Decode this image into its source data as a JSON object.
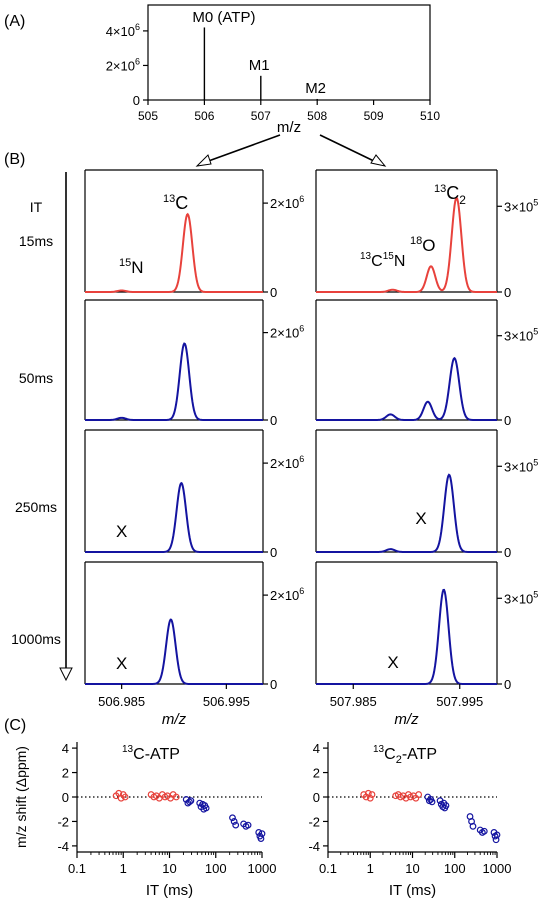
{
  "panel_labels": {
    "a": "(A)",
    "b": "(B)",
    "c": "(C)"
  },
  "it_header": "IT",
  "colors": {
    "red": "#e8423c",
    "blue": "#1414a0",
    "axis": "#000000",
    "arrow_fill": "#ffffff"
  },
  "superscripts": {
    "c13": "13",
    "n15": "15",
    "o18": "18",
    "two_sub": "2"
  },
  "labels": {
    "x_mark": "X",
    "n": "N",
    "c": "C",
    "o": "O"
  },
  "chart_data": [
    {
      "id": "A",
      "type": "bar",
      "xlabel": "m/z",
      "xlim": [
        505,
        510
      ],
      "xticks": [
        505,
        506,
        507,
        508,
        509,
        510
      ],
      "ylim": [
        0,
        5500000
      ],
      "yticks": [
        {
          "v": 0,
          "label": "0"
        },
        {
          "v": 2000000,
          "label": "2×10"
        },
        {
          "v": 4000000,
          "label": "4×10"
        }
      ],
      "ytick_exp": "6",
      "sticks": [
        {
          "x": 506.0,
          "y": 4200000,
          "label": "M0 (ATP)"
        },
        {
          "x": 507.0,
          "y": 1400000,
          "label": "M1"
        },
        {
          "x": 508.0,
          "y": 60000,
          "label": "M2"
        }
      ]
    },
    {
      "id": "B-left",
      "type": "line",
      "xlabel": "m/z",
      "xlim": [
        506.9815,
        506.9985
      ],
      "xticks": [
        {
          "v": 506.985,
          "label": "506.985"
        },
        {
          "v": 506.995,
          "label": "506.995"
        }
      ],
      "ylim": [
        0,
        2700000
      ],
      "ytick_label": "2×10",
      "ytick_exp": "6",
      "yticks": [
        0,
        2000000
      ],
      "peak_labels": {
        "c13": "13C",
        "n15": "15N"
      },
      "series": [
        {
          "name": "15ms",
          "color": "red",
          "n15": {
            "center": 506.985,
            "amp": 35000,
            "sigma": 0.0004
          },
          "peaks": [
            {
              "center": 506.9913,
              "amp": 1750000,
              "sigma": 0.00045
            }
          ]
        },
        {
          "name": "50ms",
          "color": "blue",
          "n15": {
            "center": 506.985,
            "amp": 50000,
            "sigma": 0.0004
          },
          "peaks": [
            {
              "center": 506.991,
              "amp": 1750000,
              "sigma": 0.00045
            }
          ]
        },
        {
          "name": "250ms",
          "color": "blue",
          "peaks": [
            {
              "center": 506.9907,
              "amp": 1550000,
              "sigma": 0.00045
            }
          ]
        },
        {
          "name": "1000ms",
          "color": "blue",
          "peaks": [
            {
              "center": 506.9897,
              "amp": 1450000,
              "sigma": 0.00045
            }
          ]
        }
      ]
    },
    {
      "id": "B-right",
      "type": "line",
      "xlabel": "m/z",
      "xlim": [
        507.9815,
        507.9985
      ],
      "xticks": [
        {
          "v": 507.985,
          "label": "507.985"
        },
        {
          "v": 507.995,
          "label": "507.995"
        }
      ],
      "ylim": [
        0,
        420000
      ],
      "ytick_label": "3×10",
      "ytick_exp": "5",
      "yticks": [
        0,
        300000
      ],
      "peak_labels": {
        "c13_2": "13C2",
        "o18": "18O",
        "c13n15": "13C15N"
      },
      "series": [
        {
          "name": "15ms",
          "color": "red",
          "peaks": [
            {
              "center": 507.9887,
              "amp": 8000,
              "sigma": 0.0004
            },
            {
              "center": 507.9923,
              "amp": 90000,
              "sigma": 0.0004
            },
            {
              "center": 507.9947,
              "amp": 330000,
              "sigma": 0.00045
            }
          ]
        },
        {
          "name": "50ms",
          "color": "blue",
          "peaks": [
            {
              "center": 507.9885,
              "amp": 20000,
              "sigma": 0.0004
            },
            {
              "center": 507.992,
              "amp": 65000,
              "sigma": 0.0004
            },
            {
              "center": 507.9945,
              "amp": 220000,
              "sigma": 0.00045
            }
          ]
        },
        {
          "name": "250ms",
          "color": "blue",
          "peaks": [
            {
              "center": 507.9885,
              "amp": 10000,
              "sigma": 0.0004
            },
            {
              "center": 507.994,
              "amp": 270000,
              "sigma": 0.00045
            }
          ]
        },
        {
          "name": "1000ms",
          "color": "blue",
          "peaks": [
            {
              "center": 507.9935,
              "amp": 330000,
              "sigma": 0.00045
            }
          ]
        }
      ]
    },
    {
      "id": "C-left",
      "type": "scatter",
      "title": "13C-ATP",
      "xlabel": "IT (ms)",
      "ylabel": "m/z shift (Δppm)",
      "xscale": "log",
      "xlim": [
        0.1,
        1000
      ],
      "xticks": [
        {
          "v": 0.1,
          "label": "0.1"
        },
        {
          "v": 1,
          "label": "1"
        },
        {
          "v": 10,
          "label": "10"
        },
        {
          "v": 100,
          "label": "100"
        },
        {
          "v": 1000,
          "label": "1000"
        }
      ],
      "ylim": [
        -4.5,
        4.5
      ],
      "yticks": [
        4,
        2,
        0,
        -2,
        -4
      ],
      "zero_line": "dotted",
      "points": [
        {
          "x": 0.7,
          "y": 0.1,
          "c": "red"
        },
        {
          "x": 0.8,
          "y": 0.3,
          "c": "red"
        },
        {
          "x": 0.9,
          "y": -0.1,
          "c": "red"
        },
        {
          "x": 1.0,
          "y": 0.2,
          "c": "red"
        },
        {
          "x": 1.1,
          "y": 0.0,
          "c": "red"
        },
        {
          "x": 4,
          "y": 0.2,
          "c": "red"
        },
        {
          "x": 4.6,
          "y": 0.0,
          "c": "red"
        },
        {
          "x": 5.2,
          "y": 0.1,
          "c": "red"
        },
        {
          "x": 6,
          "y": -0.1,
          "c": "red"
        },
        {
          "x": 7,
          "y": 0.2,
          "c": "red"
        },
        {
          "x": 8,
          "y": 0.0,
          "c": "red"
        },
        {
          "x": 9,
          "y": 0.1,
          "c": "red"
        },
        {
          "x": 10.5,
          "y": -0.1,
          "c": "red"
        },
        {
          "x": 12,
          "y": 0.2,
          "c": "red"
        },
        {
          "x": 14,
          "y": 0.0,
          "c": "red"
        },
        {
          "x": 23,
          "y": -0.2,
          "c": "blue"
        },
        {
          "x": 25,
          "y": -0.5,
          "c": "blue"
        },
        {
          "x": 27,
          "y": -0.4,
          "c": "blue"
        },
        {
          "x": 29,
          "y": -0.3,
          "c": "blue"
        },
        {
          "x": 45,
          "y": -0.5,
          "c": "blue"
        },
        {
          "x": 48,
          "y": -0.8,
          "c": "blue"
        },
        {
          "x": 52,
          "y": -0.6,
          "c": "blue"
        },
        {
          "x": 55,
          "y": -1.0,
          "c": "blue"
        },
        {
          "x": 58,
          "y": -0.7,
          "c": "blue"
        },
        {
          "x": 62,
          "y": -0.9,
          "c": "blue"
        },
        {
          "x": 230,
          "y": -1.7,
          "c": "blue"
        },
        {
          "x": 250,
          "y": -2.0,
          "c": "blue"
        },
        {
          "x": 270,
          "y": -2.3,
          "c": "blue"
        },
        {
          "x": 400,
          "y": -2.2,
          "c": "blue"
        },
        {
          "x": 450,
          "y": -2.4,
          "c": "blue"
        },
        {
          "x": 500,
          "y": -2.3,
          "c": "blue"
        },
        {
          "x": 850,
          "y": -2.9,
          "c": "blue"
        },
        {
          "x": 900,
          "y": -3.2,
          "c": "blue"
        },
        {
          "x": 950,
          "y": -3.4,
          "c": "blue"
        },
        {
          "x": 1000,
          "y": -3.0,
          "c": "blue"
        }
      ]
    },
    {
      "id": "C-right",
      "type": "scatter",
      "title": "13C2-ATP",
      "xlabel": "IT (ms)",
      "xscale": "log",
      "xlim": [
        0.1,
        1000
      ],
      "xticks": [
        {
          "v": 0.1,
          "label": "0.1"
        },
        {
          "v": 1,
          "label": "1"
        },
        {
          "v": 10,
          "label": "10"
        },
        {
          "v": 100,
          "label": "100"
        },
        {
          "v": 1000,
          "label": "1000"
        }
      ],
      "ylim": [
        -4.5,
        4.5
      ],
      "yticks": [
        4,
        2,
        0,
        -2,
        -4
      ],
      "zero_line": "dotted",
      "points": [
        {
          "x": 0.7,
          "y": 0.2,
          "c": "red"
        },
        {
          "x": 0.8,
          "y": 0.0,
          "c": "red"
        },
        {
          "x": 0.9,
          "y": 0.3,
          "c": "red"
        },
        {
          "x": 1.0,
          "y": -0.1,
          "c": "red"
        },
        {
          "x": 1.1,
          "y": 0.2,
          "c": "red"
        },
        {
          "x": 4,
          "y": 0.1,
          "c": "red"
        },
        {
          "x": 4.6,
          "y": 0.2,
          "c": "red"
        },
        {
          "x": 5.2,
          "y": 0.0,
          "c": "red"
        },
        {
          "x": 6,
          "y": 0.1,
          "c": "red"
        },
        {
          "x": 7,
          "y": -0.1,
          "c": "red"
        },
        {
          "x": 8,
          "y": 0.2,
          "c": "red"
        },
        {
          "x": 9,
          "y": 0.0,
          "c": "red"
        },
        {
          "x": 10.5,
          "y": 0.1,
          "c": "red"
        },
        {
          "x": 12,
          "y": -0.1,
          "c": "red"
        },
        {
          "x": 14,
          "y": 0.2,
          "c": "red"
        },
        {
          "x": 23,
          "y": 0.0,
          "c": "blue"
        },
        {
          "x": 25,
          "y": -0.3,
          "c": "blue"
        },
        {
          "x": 27,
          "y": -0.2,
          "c": "blue"
        },
        {
          "x": 29,
          "y": -0.4,
          "c": "blue"
        },
        {
          "x": 45,
          "y": -0.3,
          "c": "blue"
        },
        {
          "x": 48,
          "y": -0.6,
          "c": "blue"
        },
        {
          "x": 52,
          "y": -0.8,
          "c": "blue"
        },
        {
          "x": 55,
          "y": -0.5,
          "c": "blue"
        },
        {
          "x": 58,
          "y": -0.9,
          "c": "blue"
        },
        {
          "x": 62,
          "y": -0.7,
          "c": "blue"
        },
        {
          "x": 230,
          "y": -1.6,
          "c": "blue"
        },
        {
          "x": 250,
          "y": -2.0,
          "c": "blue"
        },
        {
          "x": 270,
          "y": -2.4,
          "c": "blue"
        },
        {
          "x": 400,
          "y": -2.7,
          "c": "blue"
        },
        {
          "x": 450,
          "y": -2.9,
          "c": "blue"
        },
        {
          "x": 500,
          "y": -2.8,
          "c": "blue"
        },
        {
          "x": 850,
          "y": -2.9,
          "c": "blue"
        },
        {
          "x": 900,
          "y": -3.2,
          "c": "blue"
        },
        {
          "x": 950,
          "y": -3.5,
          "c": "blue"
        },
        {
          "x": 1000,
          "y": -3.1,
          "c": "blue"
        }
      ]
    }
  ]
}
